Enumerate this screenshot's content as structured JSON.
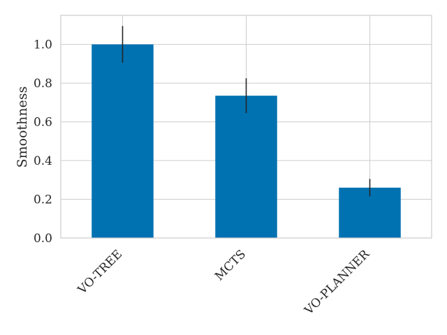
{
  "chart_data": {
    "type": "bar",
    "categories": [
      "VO-TREE",
      "MCTS",
      "VO-PLANNER"
    ],
    "values": [
      1.0,
      0.735,
      0.26
    ],
    "errors": [
      0.095,
      0.09,
      0.045
    ],
    "ylabel": "Smoothness",
    "xlabel": "",
    "ylim": [
      0,
      1.15
    ],
    "yticks": [
      0.0,
      0.2,
      0.4,
      0.6,
      0.8,
      1.0
    ],
    "ytick_labels": [
      "0.0",
      "0.2",
      "0.4",
      "0.6",
      "0.8",
      "1.0"
    ],
    "grid": true,
    "legend": "none",
    "bar_color": "#0072b2",
    "error_color": "#262626",
    "grid_color": "#cccccc",
    "spine_color": "#cccccc"
  }
}
